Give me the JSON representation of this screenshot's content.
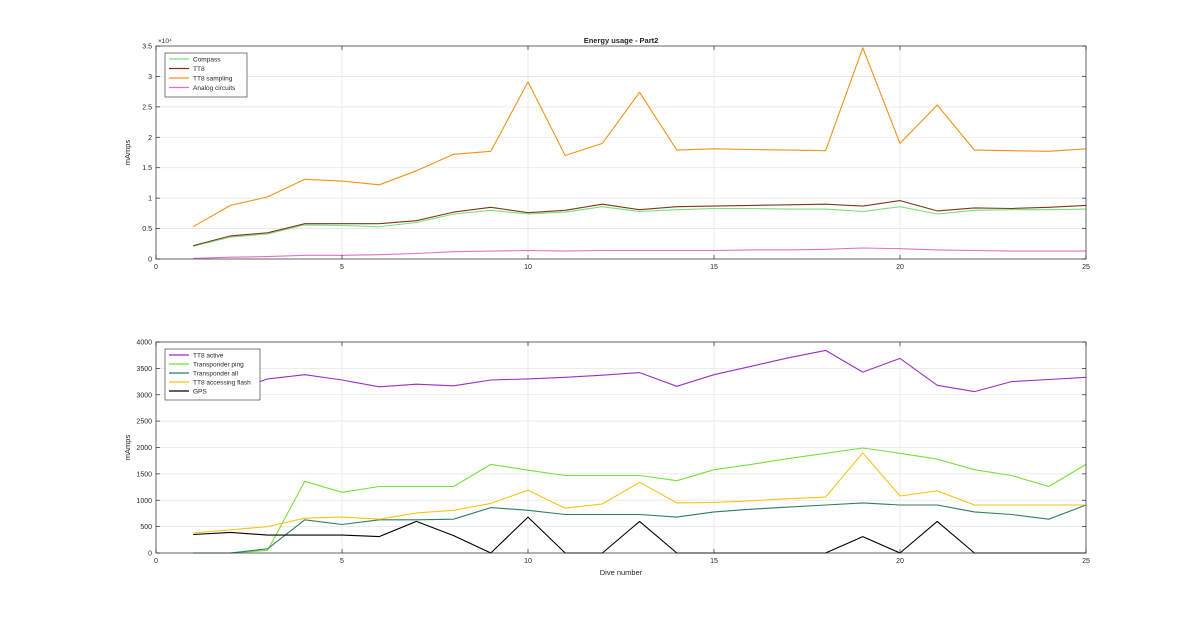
{
  "chart_data": [
    {
      "type": "line",
      "title": "Energy usage - Part2",
      "xlabel": "",
      "ylabel": "mAmps",
      "y_exponent_label": "×10⁴",
      "xlim": [
        0,
        25
      ],
      "ylim": [
        0,
        35000
      ],
      "xticks": [
        0,
        5,
        10,
        15,
        20,
        25
      ],
      "xtick_labels": [
        "0",
        "5",
        "10",
        "15",
        "20",
        "25"
      ],
      "yticks": [
        0,
        5000,
        10000,
        15000,
        20000,
        25000,
        30000,
        35000
      ],
      "ytick_labels": [
        "0",
        "0.5",
        "1",
        "1.5",
        "2",
        "2.5",
        "3",
        "3.5"
      ],
      "grid": true,
      "legend_position": "top-left",
      "x": [
        1,
        2,
        3,
        4,
        5,
        6,
        7,
        8,
        9,
        10,
        11,
        12,
        13,
        14,
        15,
        16,
        17,
        18,
        19,
        20,
        21,
        22,
        23,
        24,
        25
      ],
      "series": [
        {
          "name": "Compass",
          "color": "#7ddc7d",
          "values": [
            2100,
            3600,
            4100,
            5600,
            5500,
            5300,
            6000,
            7400,
            8000,
            7400,
            7700,
            8600,
            7800,
            8100,
            8300,
            8300,
            8200,
            8200,
            7800,
            8600,
            7400,
            8000,
            8100,
            8100,
            8200
          ]
        },
        {
          "name": "TT8",
          "color": "#7a3b14",
          "values": [
            2200,
            3800,
            4300,
            5800,
            5800,
            5800,
            6300,
            7700,
            8500,
            7600,
            8000,
            9000,
            8100,
            8600,
            8700,
            8800,
            8900,
            9000,
            8700,
            9600,
            7900,
            8400,
            8300,
            8500,
            8800
          ]
        },
        {
          "name": "TT8 sampling",
          "color": "#f0921a",
          "values": [
            5300,
            8800,
            10200,
            13100,
            12800,
            12200,
            14500,
            17200,
            17700,
            29100,
            17000,
            19000,
            27400,
            17900,
            18100,
            18000,
            17900,
            17800,
            34700,
            19000,
            25300,
            17900,
            17800,
            17700,
            18100
          ]
        },
        {
          "name": "Analog circuits",
          "color": "#e46fc4",
          "values": [
            100,
            300,
            400,
            600,
            600,
            700,
            900,
            1200,
            1300,
            1400,
            1300,
            1400,
            1400,
            1400,
            1400,
            1500,
            1500,
            1600,
            1800,
            1700,
            1500,
            1400,
            1300,
            1300,
            1300
          ]
        }
      ]
    },
    {
      "type": "line",
      "title": "",
      "xlabel": "Dive number",
      "ylabel": "mAmps",
      "xlim": [
        0,
        25
      ],
      "ylim": [
        0,
        4000
      ],
      "xticks": [
        0,
        5,
        10,
        15,
        20,
        25
      ],
      "xtick_labels": [
        "0",
        "5",
        "10",
        "15",
        "20",
        "25"
      ],
      "yticks": [
        0,
        500,
        1000,
        1500,
        2000,
        2500,
        3000,
        3500,
        4000
      ],
      "ytick_labels": [
        "0",
        "500",
        "1000",
        "1500",
        "2000",
        "2500",
        "3000",
        "3500",
        "4000"
      ],
      "grid": true,
      "legend_position": "top-left",
      "x": [
        1,
        2,
        3,
        4,
        5,
        6,
        7,
        8,
        9,
        10,
        11,
        12,
        13,
        14,
        15,
        16,
        17,
        18,
        19,
        20,
        21,
        22,
        23,
        24,
        25
      ],
      "series": [
        {
          "name": "TT8 active",
          "color": "#9b2fc4",
          "values": [
            2950,
            3050,
            3300,
            3380,
            3280,
            3150,
            3200,
            3170,
            3280,
            3300,
            3330,
            3370,
            3420,
            3160,
            3380,
            3540,
            3700,
            3840,
            3430,
            3690,
            3180,
            3060,
            3250,
            3290,
            3330
          ]
        },
        {
          "name": "Transponder ping",
          "color": "#78e03a",
          "values": [
            0,
            0,
            50,
            1360,
            1150,
            1260,
            1260,
            1260,
            1680,
            1570,
            1470,
            1470,
            1470,
            1370,
            1580,
            1680,
            1790,
            1890,
            1990,
            1890,
            1780,
            1580,
            1470,
            1260,
            1680
          ]
        },
        {
          "name": "Transponder all",
          "color": "#2e7d67",
          "values": [
            0,
            0,
            80,
            630,
            540,
            630,
            630,
            640,
            860,
            810,
            730,
            730,
            730,
            680,
            780,
            830,
            870,
            910,
            950,
            910,
            910,
            780,
            730,
            640,
            910
          ]
        },
        {
          "name": "TT8 accessing flash",
          "color": "#f5c518",
          "values": [
            380,
            440,
            500,
            660,
            680,
            640,
            760,
            810,
            940,
            1190,
            850,
            930,
            1340,
            950,
            960,
            990,
            1030,
            1060,
            1900,
            1080,
            1180,
            910,
            910,
            910,
            910
          ]
        },
        {
          "name": "GPS",
          "color": "#000000",
          "values": [
            350,
            390,
            340,
            340,
            340,
            310,
            600,
            330,
            0,
            680,
            0,
            0,
            600,
            0,
            0,
            0,
            0,
            0,
            310,
            0,
            600,
            0,
            0,
            0,
            0
          ]
        }
      ]
    }
  ]
}
